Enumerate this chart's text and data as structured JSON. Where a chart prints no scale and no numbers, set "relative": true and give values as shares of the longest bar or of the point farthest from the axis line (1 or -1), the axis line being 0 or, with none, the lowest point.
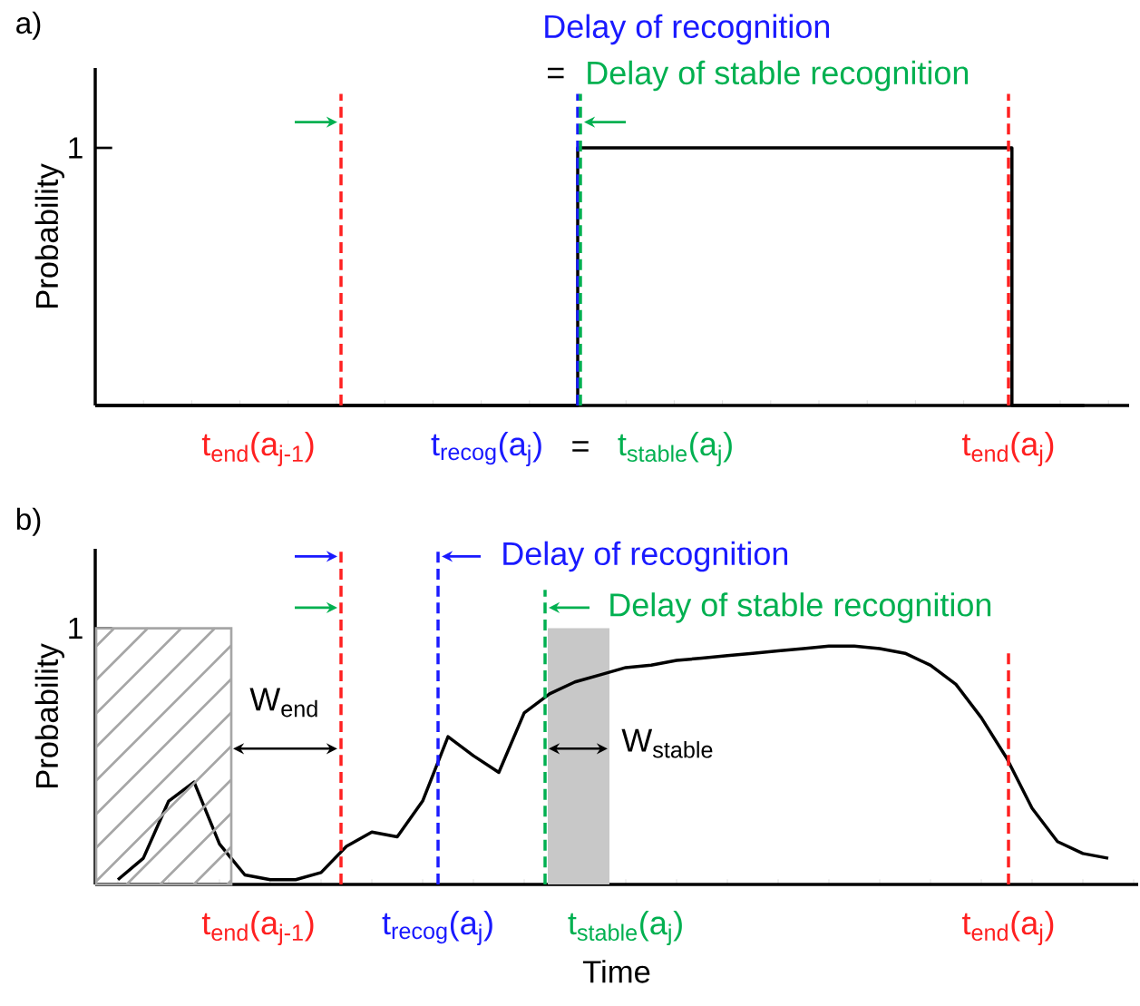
{
  "chart_data": [
    {
      "type": "step",
      "title": "a)",
      "ylabel": "Probability",
      "relative": true,
      "categories": [
        null,
        null,
        null,
        null,
        null,
        null,
        null,
        null,
        null,
        null,
        null,
        null,
        null,
        null,
        null,
        null,
        null,
        null,
        null,
        null,
        null,
        null,
        null,
        null,
        null,
        null,
        null,
        null,
        null,
        null,
        null,
        null,
        null,
        null,
        null,
        null,
        null,
        null,
        null,
        null,
        null,
        null
      ],
      "series": [
        {
          "color": "#000000",
          "values": [
            0,
            0,
            0,
            0,
            0,
            0,
            0,
            0,
            0,
            0,
            0,
            0,
            0,
            0,
            0,
            0,
            0,
            0,
            0,
            0,
            1,
            1,
            1,
            1,
            1,
            1,
            1,
            1,
            1,
            1,
            1,
            1,
            1,
            1,
            1,
            1,
            1,
            1,
            0,
            0,
            0,
            0
          ]
        }
      ],
      "annotations": [
        "Delay of recognition",
        "=",
        "Delay of stable recognition",
        "t$_{end}$(a$_{j-1}$)",
        "t$_{recog}$(a$_{j}$)",
        "=",
        "t$_{stable}$(a$_{j}$)",
        "t$_{end}$(a$_{j}$)",
        "1"
      ]
    },
    {
      "type": "line",
      "title": "b)",
      "ylabel": "Probability",
      "xlabel": "Time",
      "relative": true,
      "categories": [
        null,
        null,
        null,
        null,
        null,
        null,
        null,
        null,
        null,
        null,
        null,
        null,
        null,
        null,
        null,
        null,
        null,
        null,
        null,
        null,
        null,
        null,
        null,
        null,
        null,
        null,
        null,
        null,
        null,
        null,
        null,
        null,
        null,
        null,
        null,
        null,
        null,
        null,
        null,
        null
      ],
      "series": [
        {
          "color": "#000000",
          "values": [
            0.02,
            0.11,
            0.35,
            0.43,
            0.17,
            0.04,
            0.02,
            0.02,
            0.05,
            0.16,
            0.22,
            0.2,
            0.35,
            0.62,
            0.54,
            0.47,
            0.72,
            0.8,
            0.85,
            0.88,
            0.91,
            0.92,
            0.94,
            0.95,
            0.96,
            0.97,
            0.98,
            0.99,
            1,
            1,
            0.99,
            0.97,
            0.92,
            0.84,
            0.7,
            0.53,
            0.32,
            0.18,
            0.13,
            0.11
          ]
        }
      ],
      "annotations": [
        "Delay of recognition",
        "Delay of stable recognition",
        "W$_{end}$",
        "W$_{stable}$",
        "t$_{end}$(a$_{j-1}$)",
        "t$_{recog}$(a$_{j}$)",
        "t$_{stable}$(a$_{j}$)",
        "t$_{end}$(a$_{j}$)",
        "1"
      ]
    }
  ]
}
